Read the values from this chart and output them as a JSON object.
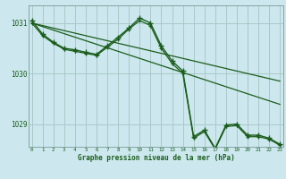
{
  "title": "Graphe pression niveau de la mer (hPa)",
  "bg_color": "#cce8ee",
  "plot_bg_color": "#cce8ee",
  "line_color": "#1a5c1a",
  "grid_color": "#aac8c8",
  "x_ticks": [
    0,
    1,
    2,
    3,
    4,
    5,
    6,
    7,
    8,
    9,
    10,
    11,
    12,
    13,
    14,
    15,
    16,
    17,
    18,
    19,
    20,
    21,
    22,
    23
  ],
  "ylim_lo": 1028.55,
  "ylim_hi": 1031.35,
  "yticks": [
    1029,
    1030,
    1031
  ],
  "series_main": [
    1031.05,
    1030.78,
    1030.62,
    1030.5,
    1030.47,
    1030.42,
    1030.38,
    1030.55,
    1030.72,
    1030.9,
    1031.1,
    1031.0,
    1030.55,
    1030.25,
    1030.05,
    1028.75,
    1028.88,
    1028.52,
    1028.98,
    1029.0,
    1028.78,
    1028.78,
    1028.72,
    1028.6
  ],
  "series2": [
    1031.0,
    1030.75,
    1030.6,
    1030.48,
    1030.44,
    1030.4,
    1030.36,
    1030.52,
    1030.68,
    1030.88,
    1031.05,
    1030.95,
    1030.5,
    1030.2,
    1030.0,
    1028.72,
    1028.85,
    1028.5,
    1028.95,
    1028.97,
    1028.75,
    1028.75,
    1028.7,
    1028.58
  ],
  "trend1": [
    1031.0,
    1030.93,
    1030.86,
    1030.79,
    1030.72,
    1030.65,
    1030.58,
    1030.51,
    1030.44,
    1030.37,
    1030.3,
    1030.23,
    1030.16,
    1030.09,
    1030.02,
    1029.95,
    1029.88,
    1029.81,
    1029.74,
    1029.67,
    1029.6,
    1029.53,
    1029.46,
    1029.39
  ],
  "trend2": [
    1031.0,
    1030.95,
    1030.9,
    1030.85,
    1030.8,
    1030.75,
    1030.7,
    1030.65,
    1030.6,
    1030.55,
    1030.5,
    1030.45,
    1030.4,
    1030.35,
    1030.3,
    1030.25,
    1030.2,
    1030.15,
    1030.1,
    1030.05,
    1030.0,
    1029.95,
    1029.9,
    1029.85
  ]
}
